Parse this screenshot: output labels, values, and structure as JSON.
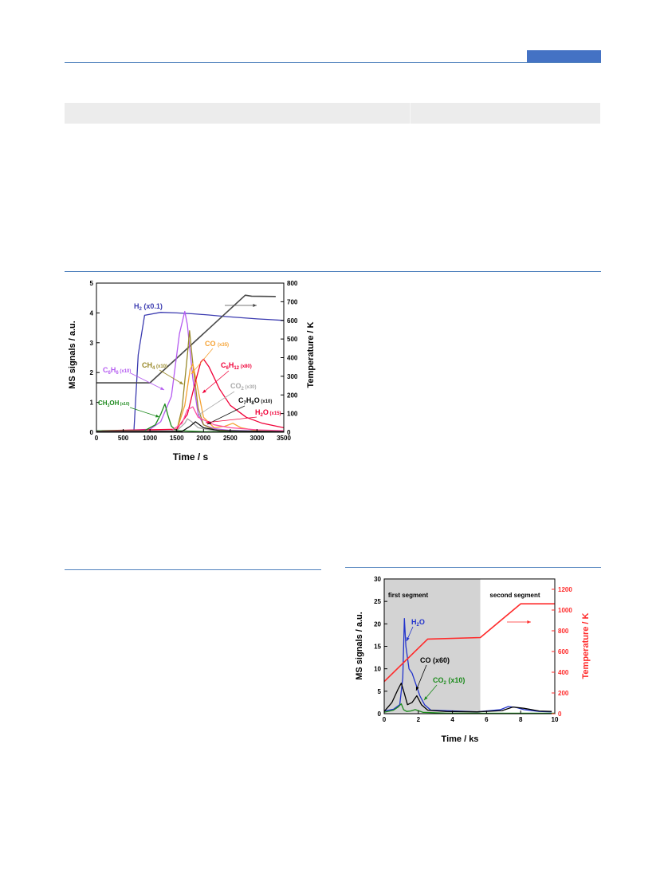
{
  "chart_data": [
    {
      "type": "line",
      "xlabel": "Time / s",
      "ylabel": "MS signals / a.u.",
      "y2label": "Temperature / K",
      "xlim": [
        0,
        3500
      ],
      "ylim": [
        0,
        5
      ],
      "y2lim": [
        0,
        800
      ],
      "xticks": [
        "0",
        "500",
        "1000",
        "1500",
        "2000",
        "2500",
        "3000",
        "3500"
      ],
      "yticks": [
        "0",
        "1",
        "2",
        "3",
        "4",
        "5"
      ],
      "y2ticks": [
        "0",
        "100",
        "200",
        "300",
        "400",
        "500",
        "600",
        "700",
        "800"
      ],
      "series": [
        {
          "name": "H2 (x0.1)",
          "color": "#3b3bb0",
          "x": [
            0,
            700,
            780,
            900,
            1200,
            1500,
            1800,
            2100,
            2400,
            2700,
            3000,
            3300,
            3500
          ],
          "y": [
            0.03,
            0.05,
            2.6,
            3.92,
            4.02,
            4.0,
            3.97,
            3.93,
            3.88,
            3.84,
            3.8,
            3.77,
            3.75
          ]
        },
        {
          "name": "Temperature",
          "axis": "y2",
          "color": "#4a4a4a",
          "x": [
            0,
            1000,
            2780,
            2900,
            3350
          ],
          "y": [
            265,
            265,
            735,
            730,
            728
          ]
        },
        {
          "name": "C6H6 (x10)",
          "color": "#b45af0",
          "x": [
            0,
            1000,
            1200,
            1400,
            1550,
            1650,
            1700,
            1800,
            1900,
            2000,
            2200,
            2500,
            3000
          ],
          "y": [
            0.02,
            0.1,
            0.35,
            1.2,
            3.3,
            4.05,
            3.6,
            1.8,
            0.6,
            0.25,
            0.12,
            0.06,
            0.04
          ]
        },
        {
          "name": "CH4 (x10)",
          "color": "#9a8a2a",
          "x": [
            0,
            1500,
            1600,
            1700,
            1740,
            1800,
            1900,
            2000,
            2200,
            2600,
            3500
          ],
          "y": [
            0.02,
            0.05,
            0.8,
            2.6,
            3.4,
            2.3,
            0.8,
            0.25,
            0.08,
            0.04,
            0.02
          ]
        },
        {
          "name": "CO (x35)",
          "color": "#f5a233",
          "x": [
            0,
            1500,
            1650,
            1750,
            1800,
            1900,
            2000,
            2200,
            2400,
            2550,
            2700,
            3000,
            3500
          ],
          "y": [
            0.02,
            0.05,
            0.9,
            2.1,
            2.3,
            1.4,
            0.5,
            0.15,
            0.2,
            0.3,
            0.15,
            0.05,
            0.02
          ]
        },
        {
          "name": "C6H12 (x80)",
          "color": "#f00038",
          "x": [
            0,
            1500,
            1700,
            1850,
            1950,
            2000,
            2100,
            2300,
            2500,
            2800,
            3100,
            3500
          ],
          "y": [
            0.05,
            0.1,
            0.6,
            1.7,
            2.35,
            2.45,
            2.2,
            1.45,
            0.9,
            0.5,
            0.3,
            0.15
          ]
        },
        {
          "name": "CH3OH (x10)",
          "color": "#1e8a1e",
          "x": [
            0,
            900,
            1100,
            1200,
            1280,
            1330,
            1400,
            1500,
            2000,
            3500
          ],
          "y": [
            0.05,
            0.05,
            0.25,
            0.6,
            0.95,
            0.6,
            0.2,
            0.05,
            0.02,
            0.01
          ]
        },
        {
          "name": "H2O (x15)",
          "color": "#ff4fa0",
          "x": [
            0,
            1400,
            1600,
            1700,
            1800,
            1900,
            2200,
            2500,
            3000,
            3500
          ],
          "y": [
            0.03,
            0.05,
            0.3,
            0.75,
            0.85,
            0.5,
            0.25,
            0.15,
            0.08,
            0.05
          ]
        },
        {
          "name": "CO2 (x30)",
          "color": "#aaaaaa",
          "x": [
            0,
            1500,
            1650,
            1700,
            1780,
            1900,
            2200,
            3500
          ],
          "y": [
            0.02,
            0.05,
            0.3,
            0.45,
            0.35,
            0.15,
            0.05,
            0.02
          ]
        },
        {
          "name": "C7H8O (x10)",
          "color": "#111111",
          "x": [
            0,
            1600,
            1750,
            1850,
            2000,
            2300,
            3500
          ],
          "y": [
            0.02,
            0.03,
            0.2,
            0.35,
            0.15,
            0.05,
            0.02
          ]
        }
      ]
    },
    {
      "type": "line",
      "xlabel": "Time / ks",
      "ylabel": "MS signals / a.u.",
      "y2label": "Temperature / K",
      "xlim": [
        0,
        11
      ],
      "ylim": [
        0,
        30
      ],
      "y2lim": [
        0,
        1300
      ],
      "xticks": [
        "0",
        "2",
        "4",
        "6",
        "8",
        "10"
      ],
      "yticks": [
        "0",
        "5",
        "10",
        "15",
        "20",
        "25",
        "30"
      ],
      "y2ticks": [
        "0",
        "200",
        "400",
        "600",
        "800",
        "1000",
        "1200"
      ],
      "regions": [
        {
          "label": "first segment",
          "x": [
            0,
            6.2
          ],
          "fill": "#d3d3d3"
        },
        {
          "label": "second segment",
          "x": [
            6.2,
            11
          ],
          "fill": "#ffffff"
        }
      ],
      "series": [
        {
          "name": "H2O",
          "color": "#2233cc",
          "x": [
            0,
            0.6,
            1.0,
            1.2,
            1.3,
            1.4,
            1.6,
            1.8,
            2.0,
            2.3,
            2.6,
            3.0,
            6.0,
            7.5,
            8.0,
            8.5,
            9.0,
            10.0,
            10.8
          ],
          "y": [
            0.6,
            1.0,
            2.0,
            8.0,
            21.2,
            15.0,
            10.0,
            9.0,
            7.0,
            4.0,
            2.0,
            0.8,
            0.4,
            0.9,
            1.6,
            1.4,
            0.9,
            0.5,
            0.4
          ]
        },
        {
          "name": "CO (x60)",
          "color": "#000000",
          "x": [
            0,
            0.5,
            0.9,
            1.1,
            1.3,
            1.5,
            1.8,
            2.1,
            2.4,
            2.8,
            4.0,
            6.0,
            7.6,
            8.3,
            9.0,
            10.0,
            10.8
          ],
          "y": [
            0.5,
            2.5,
            5.5,
            6.8,
            4.5,
            2.0,
            2.5,
            4.0,
            2.0,
            0.8,
            0.5,
            0.4,
            0.7,
            1.5,
            1.2,
            0.6,
            0.5
          ]
        },
        {
          "name": "CO2 (x10)",
          "color": "#1a8a1a",
          "x": [
            0,
            0.6,
            0.9,
            1.1,
            1.25,
            1.45,
            1.7,
            2.0,
            2.5,
            4.0,
            11.0
          ],
          "y": [
            0.3,
            0.8,
            1.5,
            2.2,
            0.9,
            0.5,
            0.6,
            0.9,
            0.3,
            0.1,
            0.1
          ]
        },
        {
          "name": "Temperature",
          "axis": "y2",
          "color": "#ff2a2a",
          "x": [
            0,
            2.8,
            6.2,
            8.8,
            11.0
          ],
          "y": [
            310,
            720,
            735,
            1060,
            1060
          ]
        }
      ]
    }
  ]
}
